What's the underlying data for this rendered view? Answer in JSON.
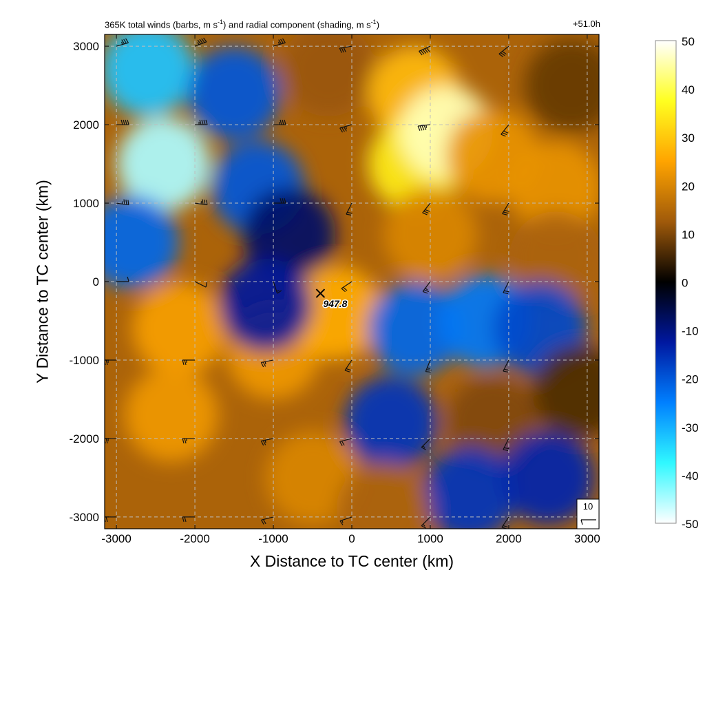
{
  "chart_data": {
    "type": "heatmap",
    "title_left_main": "365K total winds (barbs, m s",
    "title_left_mid": ") and radial component (shading, m s",
    "title_left_end": ")",
    "title_superscript": "-1",
    "title_right": "+51.0h",
    "xlabel": "X Distance to TC center (km)",
    "ylabel": "Y Distance to TC center (km)",
    "xlim": [
      -3150,
      3150
    ],
    "ylim": [
      -3150,
      3150
    ],
    "xticks": [
      -3000,
      -2000,
      -1000,
      0,
      1000,
      2000,
      3000
    ],
    "yticks": [
      3000,
      2000,
      1000,
      0,
      -1000,
      -2000,
      -3000
    ],
    "grid": true,
    "colorbar": {
      "min": -50,
      "max": 50,
      "ticks": [
        50,
        40,
        30,
        20,
        10,
        0,
        -10,
        -20,
        -30,
        -40,
        -50
      ],
      "colors": [
        "#ffffff",
        "#ffff20",
        "#ffa400",
        "#a05a0a",
        "#000000",
        "#0018a0",
        "#0080ff",
        "#30f8ff",
        "#ffffff"
      ]
    },
    "center_marker": {
      "x": -400,
      "y": -150,
      "label": "947.8"
    },
    "reference_barb": {
      "label": "10"
    },
    "radial_wind_field": [
      {
        "x": -2600,
        "y": 2700,
        "value": -32
      },
      {
        "x": -2400,
        "y": 1500,
        "value": -45
      },
      {
        "x": -1500,
        "y": 2400,
        "value": -20
      },
      {
        "x": -1200,
        "y": 1200,
        "value": -20
      },
      {
        "x": -2800,
        "y": 500,
        "value": -22
      },
      {
        "x": -800,
        "y": 600,
        "value": -8
      },
      {
        "x": -300,
        "y": 2700,
        "value": 12
      },
      {
        "x": 800,
        "y": 2400,
        "value": 28
      },
      {
        "x": 800,
        "y": 1500,
        "value": 35
      },
      {
        "x": 1200,
        "y": 1900,
        "value": 46
      },
      {
        "x": 1800,
        "y": 1600,
        "value": 22
      },
      {
        "x": 2600,
        "y": 1200,
        "value": 22
      },
      {
        "x": 2800,
        "y": 2500,
        "value": 8
      },
      {
        "x": 1000,
        "y": 600,
        "value": 20
      },
      {
        "x": 2600,
        "y": 300,
        "value": 14
      },
      {
        "x": -2200,
        "y": -600,
        "value": 24
      },
      {
        "x": -2300,
        "y": -1700,
        "value": 23
      },
      {
        "x": -1000,
        "y": -900,
        "value": 23
      },
      {
        "x": -500,
        "y": -2500,
        "value": 20
      },
      {
        "x": -200,
        "y": -400,
        "value": 26
      },
      {
        "x": -1100,
        "y": -300,
        "value": -12
      },
      {
        "x": 800,
        "y": -600,
        "value": -22
      },
      {
        "x": 1700,
        "y": -500,
        "value": -24
      },
      {
        "x": 2400,
        "y": -600,
        "value": -18
      },
      {
        "x": 500,
        "y": -1800,
        "value": -16
      },
      {
        "x": 1800,
        "y": -1800,
        "value": 10
      },
      {
        "x": 1500,
        "y": -2700,
        "value": -16
      },
      {
        "x": 2500,
        "y": -2500,
        "value": -14
      },
      {
        "x": 400,
        "y": -2900,
        "value": 14
      },
      {
        "x": 2900,
        "y": -1400,
        "value": 6
      }
    ],
    "wind_barbs": [
      {
        "x": -3000,
        "y": 3000,
        "u": -35,
        "v": -10
      },
      {
        "x": -2000,
        "y": 3000,
        "u": -40,
        "v": -15
      },
      {
        "x": -1000,
        "y": 3000,
        "u": -35,
        "v": -10
      },
      {
        "x": 0,
        "y": 3000,
        "u": 30,
        "v": 5
      },
      {
        "x": 1000,
        "y": 3000,
        "u": 45,
        "v": 20
      },
      {
        "x": 2000,
        "y": 3000,
        "u": 25,
        "v": 20
      },
      {
        "x": -3000,
        "y": 2000,
        "u": -40,
        "v": 0
      },
      {
        "x": -2000,
        "y": 2000,
        "u": -45,
        "v": 0
      },
      {
        "x": -1000,
        "y": 2000,
        "u": -35,
        "v": 0
      },
      {
        "x": 0,
        "y": 2000,
        "u": 35,
        "v": 10
      },
      {
        "x": 1000,
        "y": 2000,
        "u": 45,
        "v": 5
      },
      {
        "x": 2000,
        "y": 2000,
        "u": 20,
        "v": 25
      },
      {
        "x": -3000,
        "y": 1000,
        "u": -35,
        "v": 5
      },
      {
        "x": -2000,
        "y": 1000,
        "u": -35,
        "v": 5
      },
      {
        "x": -1000,
        "y": 1000,
        "u": -30,
        "v": 0
      },
      {
        "x": 0,
        "y": 1000,
        "u": 10,
        "v": 20
      },
      {
        "x": 1000,
        "y": 1000,
        "u": 20,
        "v": 25
      },
      {
        "x": 2000,
        "y": 1000,
        "u": 15,
        "v": 25
      },
      {
        "x": -3000,
        "y": 0,
        "u": -10,
        "v": 0
      },
      {
        "x": -2000,
        "y": 0,
        "u": -10,
        "v": 5
      },
      {
        "x": -1000,
        "y": 0,
        "u": -5,
        "v": 15
      },
      {
        "x": 0,
        "y": 0,
        "u": 15,
        "v": 10
      },
      {
        "x": 1000,
        "y": 0,
        "u": 15,
        "v": 20
      },
      {
        "x": 2000,
        "y": 0,
        "u": 10,
        "v": 20
      },
      {
        "x": -3000,
        "y": -1000,
        "u": 25,
        "v": 0
      },
      {
        "x": -2000,
        "y": -1000,
        "u": 25,
        "v": 0
      },
      {
        "x": -1000,
        "y": -1000,
        "u": 25,
        "v": 5
      },
      {
        "x": 0,
        "y": -1000,
        "u": 10,
        "v": 15
      },
      {
        "x": 1000,
        "y": -1000,
        "u": 10,
        "v": 25
      },
      {
        "x": 2000,
        "y": -1000,
        "u": 10,
        "v": 20
      },
      {
        "x": -3000,
        "y": -2000,
        "u": 25,
        "v": 0
      },
      {
        "x": -2000,
        "y": -2000,
        "u": 25,
        "v": 0
      },
      {
        "x": -1000,
        "y": -2000,
        "u": 25,
        "v": 5
      },
      {
        "x": 0,
        "y": -2000,
        "u": 20,
        "v": 5
      },
      {
        "x": 1000,
        "y": -2000,
        "u": 10,
        "v": 10
      },
      {
        "x": 2000,
        "y": -2000,
        "u": 10,
        "v": 20
      },
      {
        "x": -3000,
        "y": -3000,
        "u": 20,
        "v": 0
      },
      {
        "x": -2000,
        "y": -3000,
        "u": 20,
        "v": 0
      },
      {
        "x": -1000,
        "y": -3000,
        "u": 20,
        "v": 5
      },
      {
        "x": 0,
        "y": -3000,
        "u": 15,
        "v": 5
      },
      {
        "x": 1000,
        "y": -3000,
        "u": 10,
        "v": 10
      },
      {
        "x": 2000,
        "y": -3000,
        "u": 10,
        "v": 15
      }
    ]
  }
}
